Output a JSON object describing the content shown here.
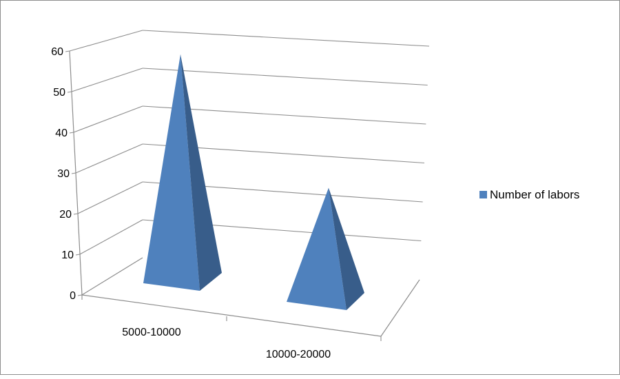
{
  "chart_data": {
    "type": "bar",
    "style": "3d-pyramid",
    "categories": [
      "5000-10000",
      "10000-20000"
    ],
    "series": [
      {
        "name": "Number of labors",
        "values": [
          59,
          30
        ],
        "color": "#4f81bd"
      }
    ],
    "y_ticks": [
      "0",
      "10",
      "20",
      "30",
      "40",
      "50",
      "60"
    ],
    "ylim": [
      0,
      60
    ],
    "grid": true,
    "legend_position": "right"
  }
}
